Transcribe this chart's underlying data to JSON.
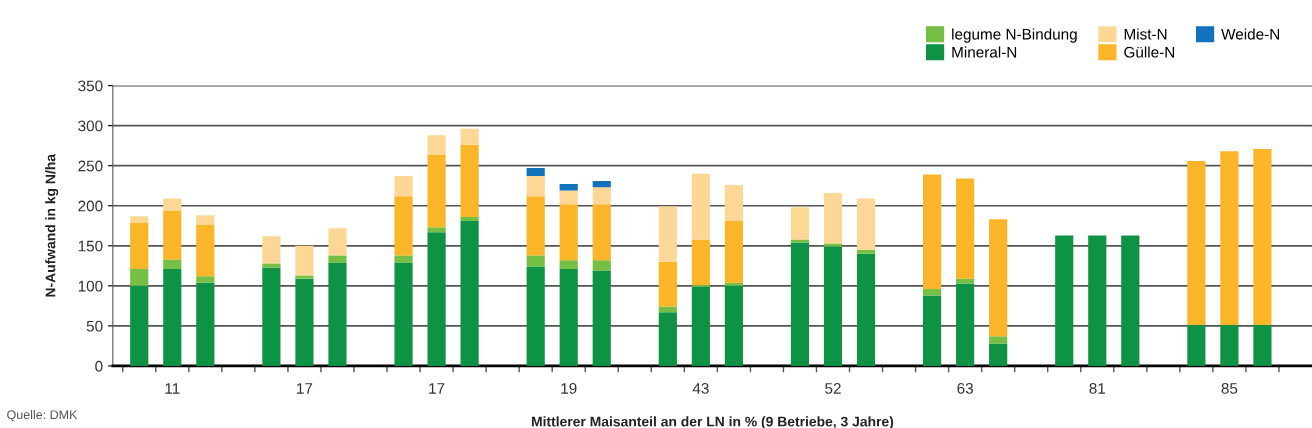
{
  "chart_data": {
    "type": "bar",
    "stacked": true,
    "xlabel": "Mittlerer Maisanteil an der LN in % (9 Betriebe, 3 Jahre)",
    "ylabel": "N-Aufwand in kg N/ha",
    "annotations": [
      "Quelle: DMK"
    ],
    "categories": [
      null,
      "11",
      null,
      null,
      null,
      "17",
      null,
      null,
      null,
      "17",
      null,
      null,
      null,
      "19",
      null,
      null,
      null,
      "43",
      null,
      null,
      null,
      "52",
      null,
      null,
      null,
      "63",
      null,
      null,
      null,
      "81",
      null,
      null,
      null,
      "85",
      null,
      null
    ],
    "series": [
      {
        "name": "Mineral-N",
        "color": "#0e9345",
        "values": [
          100,
          121,
          104,
          null,
          123,
          109,
          129,
          null,
          129,
          167,
          181,
          null,
          124,
          121,
          119,
          null,
          67,
          99,
          100,
          null,
          154,
          149,
          140,
          null,
          88,
          103,
          28,
          null,
          163,
          163,
          163,
          null,
          51,
          51,
          51,
          null
        ]
      },
      {
        "name": "legume N-Bindung",
        "color": "#74bf44",
        "values": [
          21,
          12,
          8,
          null,
          5,
          4,
          9,
          null,
          9,
          6,
          5,
          null,
          14,
          11,
          13,
          null,
          7,
          2,
          4,
          null,
          4,
          4,
          5,
          null,
          8,
          6,
          9,
          null,
          null,
          null,
          null,
          null,
          null,
          null,
          null,
          null
        ]
      },
      {
        "name": "Gülle-N",
        "color": "#fbb529",
        "values": [
          58,
          61,
          64,
          null,
          null,
          null,
          null,
          null,
          74,
          91,
          90,
          null,
          74,
          70,
          70,
          null,
          56,
          57,
          77,
          null,
          null,
          null,
          null,
          null,
          143,
          125,
          146,
          null,
          null,
          null,
          null,
          null,
          205,
          217,
          220,
          null
        ]
      },
      {
        "name": "Mist-N",
        "color": "#fdd795",
        "values": [
          8,
          15,
          12,
          null,
          34,
          37,
          34,
          null,
          25,
          24,
          20,
          null,
          25,
          17,
          21,
          null,
          69,
          82,
          45,
          null,
          40,
          63,
          64,
          null,
          null,
          null,
          null,
          null,
          null,
          null,
          null,
          null,
          null,
          null,
          null,
          null
        ]
      },
      {
        "name": "Weide-N",
        "color": "#1273bc",
        "values": [
          null,
          null,
          null,
          null,
          null,
          null,
          null,
          null,
          null,
          null,
          null,
          null,
          10,
          8,
          8,
          null,
          null,
          null,
          null,
          null,
          null,
          null,
          null,
          null,
          null,
          null,
          null,
          null,
          null,
          null,
          null,
          null,
          null,
          null,
          null,
          null
        ]
      }
    ],
    "ylim": [
      0,
      350
    ],
    "yticks": [
      0,
      50,
      100,
      150,
      200,
      250,
      300,
      350
    ],
    "grid": "y",
    "legend": "top right"
  }
}
